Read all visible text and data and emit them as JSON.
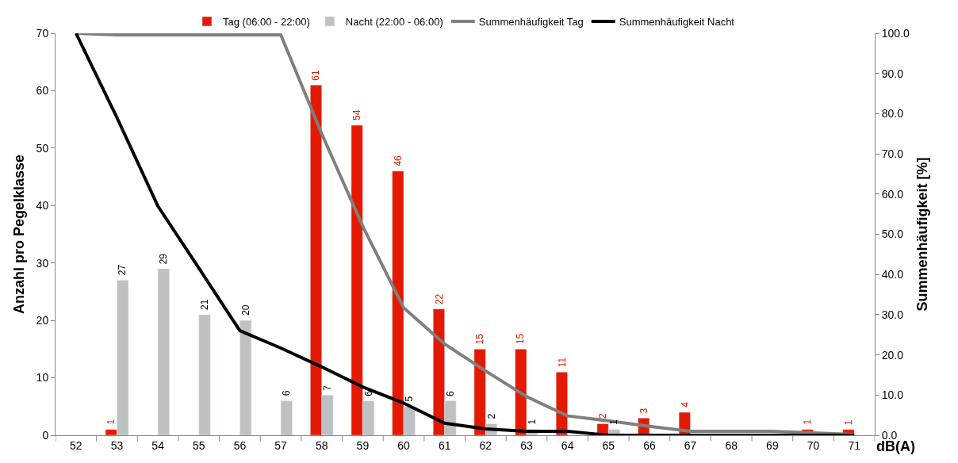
{
  "chart_data": {
    "type": "bar",
    "xlabel": "dB(A)",
    "ylabel": "Anzahl pro Pegelklasse",
    "y2label": "Summenhäufigkeit [%]",
    "categories": [
      "52",
      "53",
      "54",
      "55",
      "56",
      "57",
      "58",
      "59",
      "60",
      "61",
      "62",
      "63",
      "64",
      "65",
      "66",
      "67",
      "68",
      "69",
      "70",
      "71"
    ],
    "series": [
      {
        "name": "Tag (06:00 - 22:00)",
        "color": "#e41a00",
        "values": [
          null,
          1,
          null,
          null,
          null,
          null,
          61,
          54,
          46,
          22,
          15,
          15,
          11,
          2,
          3,
          4,
          null,
          null,
          1,
          1
        ],
        "value_labels": [
          null,
          "1",
          null,
          null,
          null,
          null,
          "61",
          "54",
          "46",
          "22",
          "15",
          "15",
          "11",
          "2",
          "3",
          "4",
          null,
          null,
          "1",
          "1"
        ]
      },
      {
        "name": "Nacht (22:00 - 06:00)",
        "color": "#bdc1c3",
        "values": [
          null,
          27,
          29,
          21,
          20,
          6,
          7,
          6,
          5,
          6,
          2,
          1,
          null,
          1,
          null,
          null,
          null,
          null,
          null,
          null
        ],
        "value_labels": [
          null,
          "27",
          "29",
          "21",
          "20",
          "6",
          "7",
          "6",
          "5",
          "6",
          "2",
          "1",
          null,
          "1",
          null,
          null,
          null,
          null,
          null,
          null
        ]
      },
      {
        "name": "Summenhäufigkeit Tag",
        "type": "line",
        "axis": "y2",
        "color": "#7f7f7f",
        "values": [
          100,
          99.6,
          99.6,
          99.6,
          99.6,
          99.6,
          75,
          52,
          31.7,
          22.7,
          16,
          9.6,
          4.8,
          3.6,
          2.2,
          1,
          1,
          1,
          0.6,
          0.2
        ]
      },
      {
        "name": "Summenhäufigkeit Nacht",
        "type": "line",
        "axis": "y2",
        "color": "#000000",
        "values": [
          100,
          79,
          57,
          41.6,
          26,
          21.7,
          17,
          12,
          8,
          3,
          1.6,
          1,
          1,
          0,
          0,
          0,
          0,
          0,
          0,
          0
        ]
      }
    ],
    "ylim": [
      0,
      70
    ],
    "yticks": [
      0,
      10,
      20,
      30,
      40,
      50,
      60,
      70
    ],
    "y2lim": [
      0,
      100
    ],
    "y2ticks": [
      {
        "value": 0,
        "label": "0.0"
      },
      {
        "value": 10,
        "label": "10.0"
      },
      {
        "value": 20,
        "label": "20.0"
      },
      {
        "value": 30,
        "label": "30.0"
      },
      {
        "value": 40,
        "label": "40.0"
      },
      {
        "value": 50,
        "label": "50.0"
      },
      {
        "value": 60,
        "label": "60.0"
      },
      {
        "value": 70,
        "label": "70.0"
      },
      {
        "value": 80,
        "label": "80.0"
      },
      {
        "value": 90,
        "label": "90.0"
      },
      {
        "value": 100,
        "label": "100.0"
      }
    ],
    "legend": "top",
    "marker": "none"
  }
}
